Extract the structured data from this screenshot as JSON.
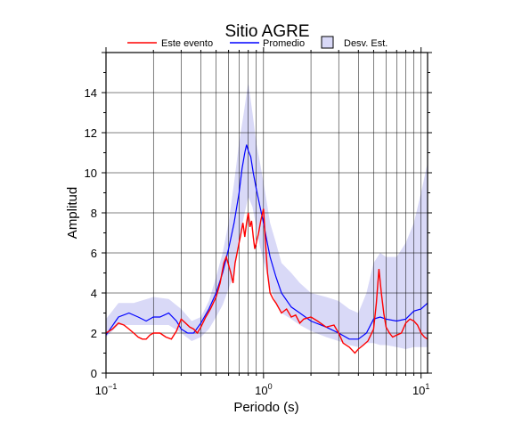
{
  "chart_data": {
    "type": "line",
    "title": "Sitio AGRE",
    "xlabel": "Periodo (s)",
    "ylabel": "Amplitud",
    "xscale": "log",
    "xlim": [
      0.1,
      11
    ],
    "ylim": [
      0,
      16
    ],
    "grid": true,
    "legend_placement": "top",
    "x_ticks": [
      {
        "value": 0.1,
        "label": "10",
        "exp": "−1"
      },
      {
        "value": 1,
        "label": "10",
        "exp": "0"
      },
      {
        "value": 10,
        "label": "10",
        "exp": "1"
      }
    ],
    "y_ticks": [
      0,
      2,
      4,
      6,
      8,
      10,
      12,
      14
    ],
    "legend": [
      {
        "label": "Este evento",
        "kind": "line",
        "color": "#ff0000"
      },
      {
        "label": "Promedio",
        "kind": "line",
        "color": "#0000ff"
      },
      {
        "label": "Desv. Est.",
        "kind": "box",
        "color": "#d9d9f7"
      }
    ],
    "band": {
      "name": "Desv. Est.",
      "color": "#d9d9f7",
      "x": [
        0.1,
        0.12,
        0.15,
        0.2,
        0.25,
        0.3,
        0.35,
        0.4,
        0.45,
        0.5,
        0.55,
        0.6,
        0.65,
        0.7,
        0.75,
        0.8,
        0.85,
        0.9,
        0.95,
        1.0,
        1.05,
        1.1,
        1.2,
        1.3,
        1.5,
        1.7,
        2.0,
        2.5,
        3.0,
        3.5,
        4.0,
        4.5,
        5.0,
        5.5,
        6.0,
        7.0,
        8.0,
        9.0,
        10.0,
        11.0
      ],
      "upper": [
        2.7,
        3.5,
        3.5,
        3.8,
        3.7,
        3.2,
        2.6,
        2.8,
        3.6,
        4.8,
        6.0,
        7.5,
        9.5,
        11.5,
        13.0,
        14.5,
        13.0,
        11.5,
        10.5,
        9.5,
        8.5,
        7.5,
        6.5,
        5.5,
        5.0,
        4.5,
        4.0,
        3.8,
        3.6,
        3.2,
        3.0,
        4.0,
        5.5,
        6.0,
        5.8,
        5.8,
        6.5,
        7.5,
        9.0,
        10.5
      ],
      "lower": [
        1.8,
        2.4,
        2.4,
        2.4,
        2.4,
        2.0,
        1.6,
        1.8,
        2.2,
        2.8,
        3.4,
        4.2,
        5.0,
        6.5,
        7.8,
        8.8,
        8.3,
        7.3,
        6.3,
        5.6,
        5.0,
        4.3,
        3.5,
        3.0,
        2.7,
        2.4,
        2.1,
        1.8,
        1.6,
        1.4,
        1.3,
        1.5,
        1.5,
        1.4,
        1.4,
        1.3,
        1.2,
        1.3,
        1.3,
        1.3
      ]
    },
    "series": [
      {
        "name": "Promedio",
        "color": "#0000ff",
        "x": [
          0.1,
          0.12,
          0.14,
          0.16,
          0.18,
          0.2,
          0.22,
          0.25,
          0.28,
          0.3,
          0.33,
          0.36,
          0.4,
          0.45,
          0.5,
          0.55,
          0.6,
          0.65,
          0.7,
          0.73,
          0.76,
          0.78,
          0.8,
          0.83,
          0.86,
          0.9,
          0.95,
          1.0,
          1.05,
          1.1,
          1.2,
          1.3,
          1.5,
          1.7,
          2.0,
          2.5,
          3.0,
          3.5,
          4.0,
          4.5,
          5.0,
          5.5,
          6.0,
          7.0,
          8.0,
          9.0,
          10.0,
          11.0
        ],
        "y": [
          1.9,
          2.8,
          3.0,
          2.8,
          2.6,
          2.8,
          2.8,
          3.0,
          2.6,
          2.2,
          2.0,
          2.0,
          2.5,
          3.2,
          4.0,
          5.0,
          6.2,
          7.5,
          9.0,
          10.2,
          11.0,
          11.4,
          11.1,
          10.8,
          10.0,
          9.2,
          8.3,
          7.5,
          6.6,
          5.8,
          4.8,
          4.0,
          3.3,
          3.0,
          2.6,
          2.3,
          2.0,
          1.7,
          1.7,
          2.0,
          2.7,
          2.8,
          2.7,
          2.6,
          2.7,
          3.1,
          3.2,
          3.5
        ]
      },
      {
        "name": "Este evento",
        "color": "#ff0000",
        "x": [
          0.1,
          0.11,
          0.12,
          0.13,
          0.14,
          0.15,
          0.16,
          0.17,
          0.18,
          0.19,
          0.2,
          0.22,
          0.24,
          0.26,
          0.28,
          0.3,
          0.32,
          0.34,
          0.36,
          0.38,
          0.4,
          0.43,
          0.46,
          0.5,
          0.53,
          0.56,
          0.58,
          0.6,
          0.62,
          0.64,
          0.66,
          0.68,
          0.7,
          0.72,
          0.74,
          0.76,
          0.78,
          0.8,
          0.82,
          0.84,
          0.86,
          0.88,
          0.9,
          0.93,
          0.96,
          1.0,
          1.03,
          1.06,
          1.1,
          1.15,
          1.2,
          1.3,
          1.4,
          1.5,
          1.6,
          1.7,
          1.8,
          2.0,
          2.2,
          2.5,
          2.8,
          3.0,
          3.2,
          3.5,
          3.8,
          4.0,
          4.3,
          4.6,
          5.0,
          5.2,
          5.4,
          5.6,
          5.8,
          6.0,
          6.3,
          6.6,
          7.0,
          7.5,
          8.0,
          8.5,
          9.0,
          9.5,
          10.0,
          10.5,
          11.0
        ],
        "y": [
          2.0,
          2.2,
          2.5,
          2.4,
          2.2,
          2.0,
          1.8,
          1.7,
          1.7,
          1.9,
          2.0,
          2.0,
          1.8,
          1.7,
          2.1,
          2.7,
          2.5,
          2.3,
          2.2,
          2.0,
          2.3,
          2.8,
          3.2,
          3.8,
          4.5,
          5.5,
          5.8,
          5.4,
          5.0,
          4.5,
          5.5,
          6.0,
          6.5,
          7.0,
          7.5,
          6.8,
          7.5,
          8.0,
          7.3,
          7.6,
          6.8,
          6.2,
          6.5,
          7.0,
          7.6,
          8.2,
          6.5,
          5.0,
          4.0,
          3.7,
          3.5,
          3.0,
          3.2,
          2.8,
          2.9,
          2.5,
          2.7,
          2.8,
          2.6,
          2.3,
          2.4,
          2.0,
          1.5,
          1.3,
          1.0,
          1.2,
          1.4,
          1.6,
          2.2,
          3.5,
          5.2,
          4.0,
          3.0,
          2.3,
          2.0,
          1.8,
          1.9,
          2.0,
          2.5,
          2.7,
          2.6,
          2.4,
          2.0,
          1.8,
          1.7
        ]
      }
    ]
  }
}
